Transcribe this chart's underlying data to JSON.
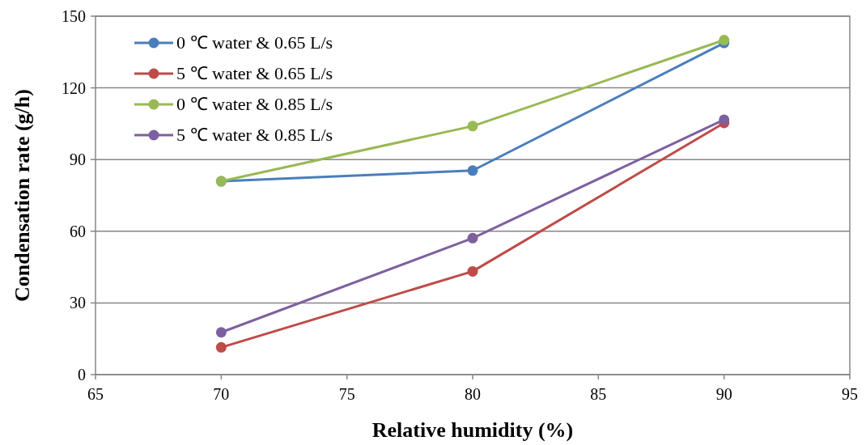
{
  "chart_data": {
    "type": "line",
    "xlabel": "Relative humidity (%)",
    "ylabel": "Condensation rate (g/h)",
    "x": [
      70,
      80,
      90
    ],
    "series": [
      {
        "name": "0 ℃ water & 0.65 L/s",
        "color": "#4a7ebb",
        "values": [
          80.9,
          85.4,
          138.8
        ]
      },
      {
        "name": "5 ℃ water & 0.65 L/s",
        "color": "#be4b48",
        "values": [
          11.4,
          43.2,
          105.3
        ]
      },
      {
        "name": "0 ℃ water & 0.85 L/s",
        "color": "#98b954",
        "values": [
          80.9,
          104,
          140
        ]
      },
      {
        "name": "5 ℃ water & 0.85 L/s",
        "color": "#7d60a0",
        "values": [
          17.7,
          57.1,
          106.7
        ]
      }
    ],
    "xlim": [
      65,
      95
    ],
    "xticks": [
      65,
      70,
      75,
      80,
      85,
      90,
      95
    ],
    "ylim": [
      0,
      150
    ],
    "yticks": [
      0,
      30,
      60,
      90,
      120,
      150
    ],
    "grid": "y",
    "legend": "top left",
    "marker": "circle",
    "line_style": "solid"
  }
}
